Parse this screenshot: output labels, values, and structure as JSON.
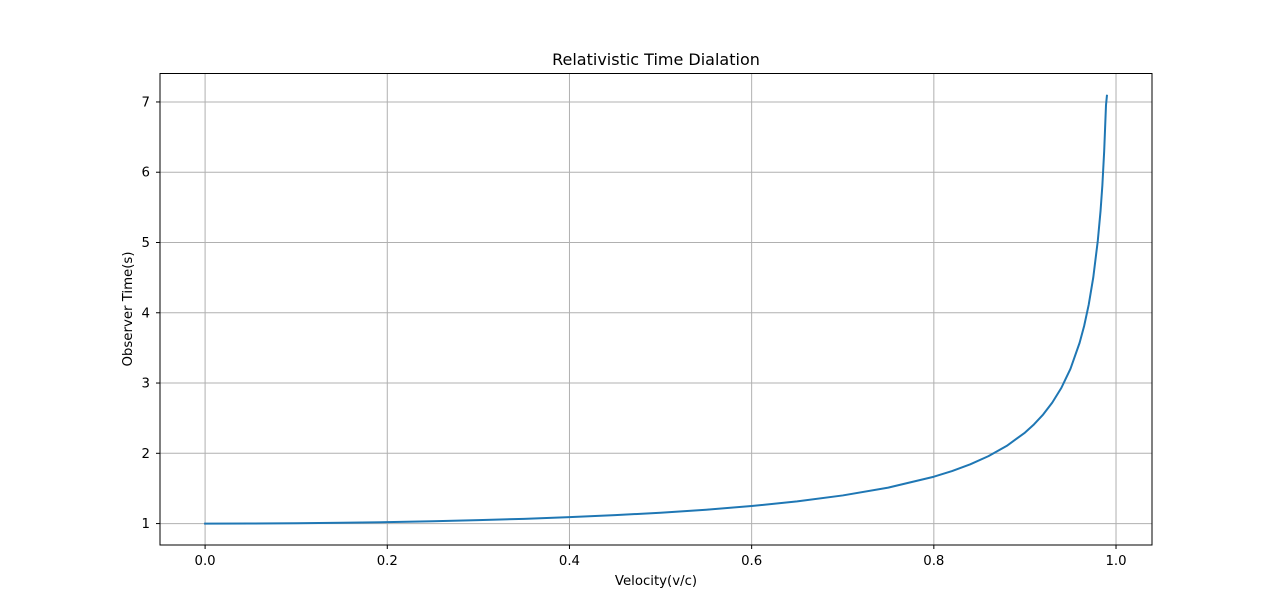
{
  "chart_data": {
    "type": "line",
    "title": "Relativistic Time Dialation",
    "xlabel": "Velocity(v/c)",
    "ylabel": "Observer Time(s)",
    "xlim": [
      -0.0495,
      1.0395
    ],
    "ylim": [
      0.695,
      7.405
    ],
    "xticks": [
      0.0,
      0.2,
      0.4,
      0.6,
      0.8,
      1.0
    ],
    "xtick_labels": [
      "0.0",
      "0.2",
      "0.4",
      "0.6",
      "0.8",
      "1.0"
    ],
    "yticks": [
      1,
      2,
      3,
      4,
      5,
      6,
      7
    ],
    "ytick_labels": [
      "1",
      "2",
      "3",
      "4",
      "5",
      "6",
      "7"
    ],
    "grid": true,
    "series": [
      {
        "color": "#1f77b4",
        "x": [
          0.0,
          0.05,
          0.1,
          0.15,
          0.2,
          0.25,
          0.3,
          0.35,
          0.4,
          0.45,
          0.5,
          0.55,
          0.6,
          0.65,
          0.7,
          0.75,
          0.8,
          0.82,
          0.84,
          0.86,
          0.88,
          0.9,
          0.91,
          0.92,
          0.93,
          0.94,
          0.95,
          0.96,
          0.965,
          0.97,
          0.975,
          0.98,
          0.983,
          0.985,
          0.987,
          0.989,
          0.99
        ],
        "y": [
          1.0,
          1.0013,
          1.005,
          1.0114,
          1.0206,
          1.0328,
          1.0483,
          1.0675,
          1.0911,
          1.1198,
          1.1547,
          1.1974,
          1.25,
          1.3159,
          1.4003,
          1.5119,
          1.6667,
          1.7471,
          1.843,
          1.9596,
          2.1054,
          2.2942,
          2.4119,
          2.5516,
          2.7206,
          2.9311,
          3.2026,
          3.5714,
          3.8119,
          4.1134,
          4.5004,
          5.0252,
          5.4462,
          5.8108,
          6.2998,
          6.9561,
          7.0888
        ]
      }
    ]
  }
}
